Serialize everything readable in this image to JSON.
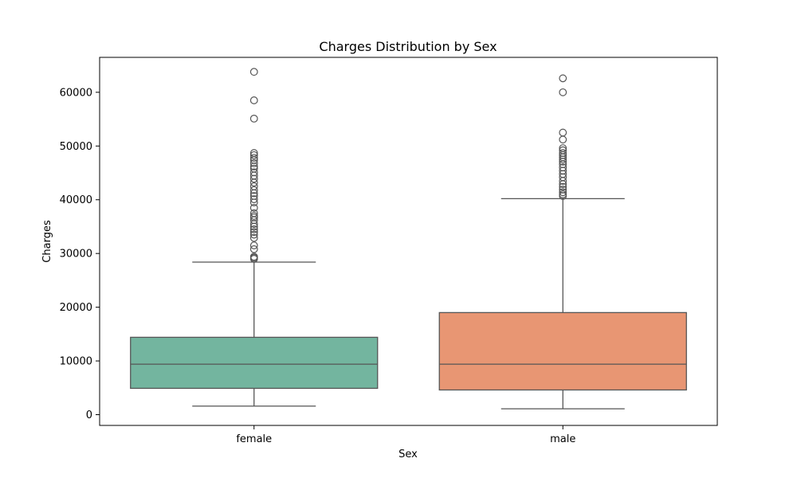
{
  "chart_data": {
    "type": "box",
    "title": "Charges Distribution by Sex",
    "xlabel": "Sex",
    "ylabel": "Charges",
    "ylim": [
      -2000,
      66500
    ],
    "yticks": [
      0,
      10000,
      20000,
      30000,
      40000,
      50000,
      60000
    ],
    "categories": [
      "female",
      "male"
    ],
    "boxes": [
      {
        "category": "female",
        "color": "#73b59f",
        "whisker_low": 1600,
        "q1": 4900,
        "median": 9400,
        "q3": 14400,
        "whisker_high": 28400,
        "outliers": [
          29000,
          29200,
          29400,
          30800,
          31500,
          32900,
          33500,
          34000,
          34500,
          35000,
          35500,
          36200,
          36700,
          37000,
          37500,
          38500,
          39500,
          40100,
          40700,
          41200,
          41800,
          42500,
          43200,
          43900,
          44500,
          45100,
          45800,
          46200,
          46800,
          47400,
          47800,
          48300,
          48700,
          55100,
          58500,
          63800
        ]
      },
      {
        "category": "male",
        "color": "#e89673",
        "whisker_low": 1100,
        "q1": 4600,
        "median": 9400,
        "q3": 19000,
        "whisker_high": 40200,
        "outliers": [
          40700,
          41000,
          41400,
          41900,
          42400,
          42900,
          43500,
          44200,
          44800,
          45400,
          46000,
          46600,
          47100,
          47500,
          47900,
          48300,
          48700,
          49200,
          49600,
          51200,
          52500,
          60000,
          62600
        ]
      }
    ]
  }
}
